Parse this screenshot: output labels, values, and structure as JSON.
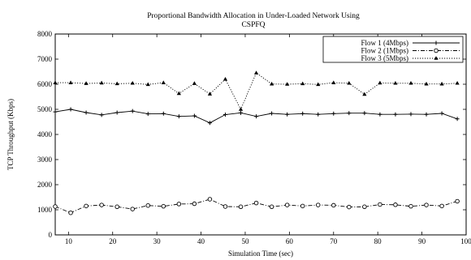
{
  "chart_data": {
    "type": "line",
    "title_lines": [
      "Proportional Bandwidth Allocation in Under-Loaded Network Using",
      "CSPFQ"
    ],
    "xlabel": "Simulation Time (sec)",
    "ylabel": "TCP Throughput (Kbps)",
    "xlim": [
      7,
      100
    ],
    "ylim": [
      0,
      8000
    ],
    "x_ticks": [
      "10",
      "20",
      "30",
      "40",
      "50",
      "60",
      "70",
      "80",
      "90",
      "100"
    ],
    "y_ticks": [
      "0",
      "1000",
      "2000",
      "3000",
      "4000",
      "5000",
      "6000",
      "7000",
      "8000"
    ],
    "grid": false,
    "legend_position": "top-right",
    "series": [
      {
        "name": "Flow 1 (4Mbps)",
        "marker": "plus",
        "line": "solid",
        "x": [
          7,
          10.5,
          14,
          17.5,
          21,
          24.5,
          28,
          31.5,
          35,
          38.5,
          42,
          45.5,
          49,
          52.5,
          56,
          59.5,
          63,
          66.5,
          70,
          73.5,
          77,
          80.5,
          84,
          87.5,
          91,
          94.5,
          98
        ],
        "values": [
          4900,
          5000,
          4870,
          4780,
          4870,
          4930,
          4820,
          4830,
          4720,
          4740,
          4460,
          4790,
          4860,
          4720,
          4840,
          4800,
          4830,
          4800,
          4830,
          4850,
          4850,
          4800,
          4800,
          4810,
          4800,
          4840,
          4620
        ]
      },
      {
        "name": "Flow 2 (1Mbps)",
        "marker": "circle",
        "line": "dash-dot",
        "x": [
          7,
          10.5,
          14,
          17.5,
          21,
          24.5,
          28,
          31.5,
          35,
          38.5,
          42,
          45.5,
          49,
          52.5,
          56,
          59.5,
          63,
          66.5,
          70,
          73.5,
          77,
          80.5,
          84,
          87.5,
          91,
          94.5,
          98
        ],
        "values": [
          1130,
          880,
          1150,
          1190,
          1120,
          1030,
          1170,
          1140,
          1230,
          1240,
          1420,
          1130,
          1120,
          1270,
          1120,
          1190,
          1150,
          1190,
          1180,
          1110,
          1120,
          1210,
          1200,
          1140,
          1190,
          1150,
          1340
        ]
      },
      {
        "name": "Flow 3 (5Mbps)",
        "marker": "triangle",
        "line": "dotted",
        "x": [
          7,
          10.5,
          14,
          17.5,
          21,
          24.5,
          28,
          31.5,
          35,
          38.5,
          42,
          45.5,
          49,
          52.5,
          56,
          59.5,
          63,
          66.5,
          70,
          73.5,
          77,
          80.5,
          84,
          87.5,
          91,
          94.5,
          98
        ],
        "values": [
          6060,
          6060,
          6030,
          6050,
          6020,
          6040,
          5990,
          6060,
          5630,
          6030,
          5610,
          6200,
          5000,
          6450,
          6010,
          6000,
          6020,
          5990,
          6060,
          6040,
          5600,
          6050,
          6040,
          6040,
          6010,
          6010,
          6040
        ]
      }
    ]
  }
}
